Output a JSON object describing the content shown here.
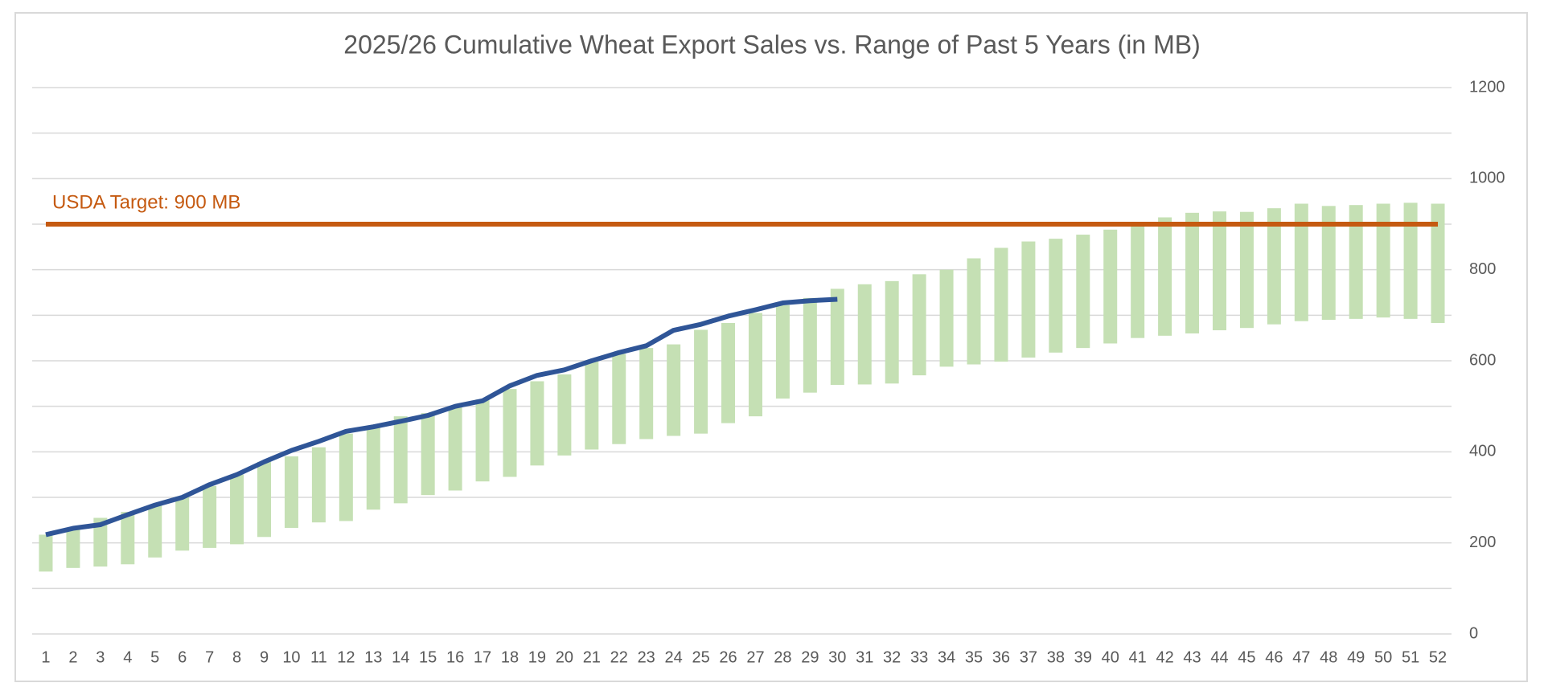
{
  "chart_data": {
    "type": "combo",
    "title": "2025/26 Cumulative Wheat Export Sales vs. Range of Past 5 Years (in MB)",
    "categories": [
      1,
      2,
      3,
      4,
      5,
      6,
      7,
      8,
      9,
      10,
      11,
      12,
      13,
      14,
      15,
      16,
      17,
      18,
      19,
      20,
      21,
      22,
      23,
      24,
      25,
      26,
      27,
      28,
      29,
      30,
      31,
      32,
      33,
      34,
      35,
      36,
      37,
      38,
      39,
      40,
      41,
      42,
      43,
      44,
      45,
      46,
      47,
      48,
      49,
      50,
      51,
      52
    ],
    "series": [
      {
        "type": "range-bar",
        "color": "#c5e0b4",
        "low": [
          137,
          145,
          148,
          153,
          168,
          183,
          189,
          197,
          213,
          233,
          245,
          248,
          273,
          287,
          305,
          315,
          335,
          345,
          370,
          392,
          405,
          417,
          428,
          435,
          440,
          463,
          478,
          517,
          530,
          547,
          548,
          550,
          568,
          587,
          592,
          598,
          607,
          618,
          628,
          638,
          650,
          655,
          660,
          667,
          672,
          680,
          687,
          690,
          692,
          695,
          692,
          683
        ],
        "high": [
          218,
          230,
          255,
          268,
          283,
          302,
          325,
          350,
          378,
          390,
          410,
          440,
          458,
          478,
          485,
          500,
          515,
          538,
          555,
          570,
          600,
          615,
          628,
          636,
          668,
          683,
          705,
          722,
          738,
          758,
          768,
          775,
          790,
          800,
          825,
          848,
          862,
          868,
          877,
          888,
          898,
          915,
          925,
          928,
          927,
          935,
          945,
          940,
          942,
          945,
          947,
          945
        ]
      },
      {
        "type": "line",
        "color": "#2f5597",
        "values": [
          218,
          232,
          240,
          262,
          283,
          300,
          328,
          350,
          378,
          403,
          423,
          445,
          455,
          467,
          480,
          500,
          512,
          545,
          568,
          580,
          600,
          618,
          633,
          667,
          680,
          698,
          712,
          727,
          732,
          735,
          null,
          null,
          null,
          null,
          null,
          null,
          null,
          null,
          null,
          null,
          null,
          null,
          null,
          null,
          null,
          null,
          null,
          null,
          null,
          null,
          null,
          null
        ]
      }
    ],
    "target": {
      "value": 900,
      "label": "USDA Target: 900 MB",
      "color": "#c55a11"
    },
    "ylim": [
      0,
      1200
    ],
    "yticks": [
      0,
      200,
      400,
      600,
      800,
      1000,
      1200
    ],
    "minor_yticks": [
      100,
      300,
      500,
      700,
      900,
      1100
    ],
    "grid": true,
    "y_axis_side": "right"
  }
}
